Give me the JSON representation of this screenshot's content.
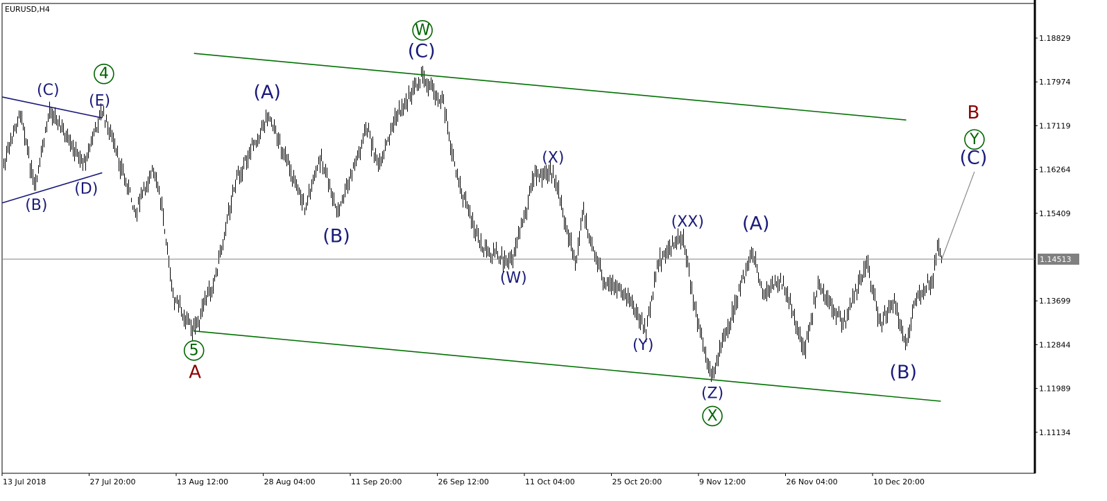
{
  "chart_data": {
    "type": "ohlc-bar",
    "symbol_label": "EURUSD,H4",
    "ylim": [
      1.10333,
      1.19505
    ],
    "grid": false,
    "y_ticks": [
      "1.18829",
      "1.17974",
      "1.17119",
      "1.16264",
      "1.15409",
      "1.13699",
      "1.12844",
      "1.11989",
      "1.11134"
    ],
    "current_price": "1.14513",
    "x_ticks": [
      {
        "label": "13 Jul 2018",
        "t": "2018-07-13T00:00"
      },
      {
        "label": "27 Jul 20:00",
        "t": "2018-07-27T20:00"
      },
      {
        "label": "13 Aug 12:00",
        "t": "2018-08-13T12:00"
      },
      {
        "label": "28 Aug 04:00",
        "t": "2018-08-28T04:00"
      },
      {
        "label": "11 Sep 20:00",
        "t": "2018-09-11T20:00"
      },
      {
        "label": "26 Sep 12:00",
        "t": "2018-09-26T12:00"
      },
      {
        "label": "11 Oct 04:00",
        "t": "2018-10-11T04:00"
      },
      {
        "label": "25 Oct 20:00",
        "t": "2018-10-25T20:00"
      },
      {
        "label": "9 Nov 12:00",
        "t": "2018-11-09T12:00"
      },
      {
        "label": "26 Nov 04:00",
        "t": "2018-11-26T04:00"
      },
      {
        "label": "10 Dec 20:00",
        "t": "2018-12-10T20:00"
      }
    ],
    "price_path": [
      {
        "t": "2018-07-13T00:00",
        "p": 1.1626
      },
      {
        "t": "2018-07-16T04:00",
        "p": 1.1741
      },
      {
        "t": "2018-07-18T12:00",
        "p": 1.1585
      },
      {
        "t": "2018-07-21T04:00",
        "p": 1.1748
      },
      {
        "t": "2018-07-24T12:00",
        "p": 1.1673
      },
      {
        "t": "2018-07-26T20:00",
        "p": 1.1639
      },
      {
        "t": "2018-07-30T08:00",
        "p": 1.1741
      },
      {
        "t": "2018-08-05T16:00",
        "p": 1.1545
      },
      {
        "t": "2018-08-09T00:00",
        "p": 1.1626
      },
      {
        "t": "2018-08-10T20:00",
        "p": 1.1551
      },
      {
        "t": "2018-08-12T20:00",
        "p": 1.1376
      },
      {
        "t": "2018-08-16T12:00",
        "p": 1.1311
      },
      {
        "t": "2018-08-20T00:00",
        "p": 1.1416
      },
      {
        "t": "2018-08-23T12:00",
        "p": 1.1606
      },
      {
        "t": "2018-08-29T00:00",
        "p": 1.1734
      },
      {
        "t": "2018-09-04T04:00",
        "p": 1.1551
      },
      {
        "t": "2018-09-06T20:00",
        "p": 1.1653
      },
      {
        "t": "2018-09-09T16:00",
        "p": 1.1538
      },
      {
        "t": "2018-09-14T16:00",
        "p": 1.1707
      },
      {
        "t": "2018-09-16T16:00",
        "p": 1.1626
      },
      {
        "t": "2018-09-19T04:00",
        "p": 1.1721
      },
      {
        "t": "2018-09-23T20:00",
        "p": 1.1811
      },
      {
        "t": "2018-09-27T12:00",
        "p": 1.1754
      },
      {
        "t": "2018-09-29T20:00",
        "p": 1.1606
      },
      {
        "t": "2018-10-04T00:00",
        "p": 1.147
      },
      {
        "t": "2018-10-08T20:00",
        "p": 1.1443
      },
      {
        "t": "2018-10-12T20:00",
        "p": 1.1612
      },
      {
        "t": "2018-10-16T00:00",
        "p": 1.1619
      },
      {
        "t": "2018-10-19T20:00",
        "p": 1.1443
      },
      {
        "t": "2018-10-21T00:00",
        "p": 1.1545
      },
      {
        "t": "2018-10-24T12:00",
        "p": 1.1403
      },
      {
        "t": "2018-10-28T12:00",
        "p": 1.1383
      },
      {
        "t": "2018-10-31T12:00",
        "p": 1.1308
      },
      {
        "t": "2018-11-02T20:00",
        "p": 1.145
      },
      {
        "t": "2018-11-06T20:00",
        "p": 1.1497
      },
      {
        "t": "2018-11-08T16:00",
        "p": 1.1362
      },
      {
        "t": "2018-11-11T20:00",
        "p": 1.122
      },
      {
        "t": "2018-11-16T12:00",
        "p": 1.1362
      },
      {
        "t": "2018-11-19T20:00",
        "p": 1.147
      },
      {
        "t": "2018-11-21T20:00",
        "p": 1.1376
      },
      {
        "t": "2018-11-25T04:00",
        "p": 1.1416
      },
      {
        "t": "2018-11-29T08:00",
        "p": 1.1274
      },
      {
        "t": "2018-12-01T16:00",
        "p": 1.1403
      },
      {
        "t": "2018-12-05T20:00",
        "p": 1.1322
      },
      {
        "t": "2018-12-09T20:00",
        "p": 1.1443
      },
      {
        "t": "2018-12-12T04:00",
        "p": 1.1322
      },
      {
        "t": "2018-12-14T12:00",
        "p": 1.1376
      },
      {
        "t": "2018-12-16T08:00",
        "p": 1.1281
      },
      {
        "t": "2018-12-18T00:00",
        "p": 1.1369
      },
      {
        "t": "2018-12-21T00:00",
        "p": 1.1416
      },
      {
        "t": "2018-12-21T20:00",
        "p": 1.1487
      },
      {
        "t": "2018-12-22T12:00",
        "p": 1.14513
      }
    ],
    "trendlines": [
      {
        "name": "channel-upper",
        "color": "#007000",
        "from": {
          "t": "2018-08-16T12:00",
          "p": 1.1853
        },
        "to": {
          "t": "2018-12-16T12:00",
          "p": 1.1723
        }
      },
      {
        "name": "channel-lower",
        "color": "#007000",
        "from": {
          "t": "2018-08-16T12:00",
          "p": 1.1311
        },
        "to": {
          "t": "2018-12-22T08:00",
          "p": 1.1174
        }
      },
      {
        "name": "triangle-upper",
        "color": "#1a1a7a",
        "from": {
          "t": "2018-07-13T00:00",
          "p": 1.1768
        },
        "to": {
          "t": "2018-07-30T08:00",
          "p": 1.1727
        }
      },
      {
        "name": "triangle-lower",
        "color": "#1a1a7a",
        "from": {
          "t": "2018-07-13T00:00",
          "p": 1.1561
        },
        "to": {
          "t": "2018-07-30T08:00",
          "p": 1.162
        }
      },
      {
        "name": "projection",
        "color": "#8a8a8a",
        "from": {
          "t": "2018-12-22T12:00",
          "p": 1.14513
        },
        "to": {
          "t": "2018-12-28T00:00",
          "p": 1.1622
        }
      }
    ],
    "wave_labels": [
      {
        "text": "(C)",
        "kind": "small",
        "color": "#1a1a7a",
        "t": "2018-07-20T20:00",
        "p": 1.1781
      },
      {
        "text": "(E)",
        "kind": "small",
        "color": "#1a1a7a",
        "t": "2018-07-29T20:00",
        "p": 1.176
      },
      {
        "text": "4",
        "kind": "circle",
        "color": "#006400",
        "t": "2018-07-30T16:00",
        "p": 1.1813
      },
      {
        "text": "(B)",
        "kind": "small",
        "color": "#1a1a7a",
        "t": "2018-07-18T20:00",
        "p": 1.1556
      },
      {
        "text": "(D)",
        "kind": "small",
        "color": "#1a1a7a",
        "t": "2018-07-27T08:00",
        "p": 1.1588
      },
      {
        "text": "5",
        "kind": "circle",
        "color": "#006400",
        "t": "2018-08-16T12:00",
        "p": 1.1273
      },
      {
        "text": "A",
        "kind": "letter",
        "color": "#8b0000",
        "t": "2018-08-16T16:00",
        "p": 1.123
      },
      {
        "text": "(A)",
        "kind": "large",
        "color": "#1a1a7a",
        "t": "2018-08-28T20:00",
        "p": 1.1777
      },
      {
        "text": "(B)",
        "kind": "large",
        "color": "#1a1a7a",
        "t": "2018-09-09T12:00",
        "p": 1.1496
      },
      {
        "text": "W",
        "kind": "circle",
        "color": "#006400",
        "t": "2018-09-24T00:00",
        "p": 1.1898
      },
      {
        "text": "(C)",
        "kind": "large",
        "color": "#1a1a7a",
        "t": "2018-09-23T20:00",
        "p": 1.1857
      },
      {
        "text": "(X)",
        "kind": "small",
        "color": "#1a1a7a",
        "t": "2018-10-16T00:00",
        "p": 1.1649
      },
      {
        "text": "(W)",
        "kind": "small",
        "color": "#1a1a7a",
        "t": "2018-10-09T08:00",
        "p": 1.1414
      },
      {
        "text": "(XX)",
        "kind": "small",
        "color": "#1a1a7a",
        "t": "2018-11-07T16:00",
        "p": 1.1524
      },
      {
        "text": "(Y)",
        "kind": "small",
        "color": "#1a1a7a",
        "t": "2018-10-31T04:00",
        "p": 1.1283
      },
      {
        "text": "(A)",
        "kind": "large",
        "color": "#1a1a7a",
        "t": "2018-11-20T12:00",
        "p": 1.152
      },
      {
        "text": "(Z)",
        "kind": "small",
        "color": "#1a1a7a",
        "t": "2018-11-12T04:00",
        "p": 1.1189
      },
      {
        "text": "X",
        "kind": "circle",
        "color": "#006400",
        "t": "2018-11-12T04:00",
        "p": 1.1145
      },
      {
        "text": "(B)",
        "kind": "large",
        "color": "#1a1a7a",
        "t": "2018-12-16T00:00",
        "p": 1.123
      },
      {
        "text": "B",
        "kind": "letter",
        "color": "#8b0000",
        "t": "2018-12-27T20:00",
        "p": 1.1737
      },
      {
        "text": "Y",
        "kind": "circle",
        "color": "#006400",
        "t": "2018-12-28T00:00",
        "p": 1.1685
      },
      {
        "text": "(C)",
        "kind": "large",
        "color": "#1a1a7a",
        "t": "2018-12-27T20:00",
        "p": 1.1649
      }
    ],
    "colors": {
      "bars": "#000000",
      "current_price_line": "#808080",
      "current_price_box": "#808080"
    }
  }
}
